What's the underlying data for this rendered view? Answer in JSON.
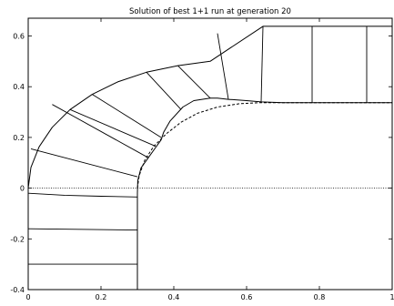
{
  "chart_data": {
    "type": "line",
    "title": "Solution of best 1+1 run at generation 20",
    "xlabel": "",
    "ylabel": "",
    "xlim": [
      0,
      1
    ],
    "ylim": [
      -0.4,
      0.67
    ],
    "x_ticks": [
      {
        "value": 0,
        "label": "0"
      },
      {
        "value": 0.2,
        "label": "0.2"
      },
      {
        "value": 0.4,
        "label": "0.4"
      },
      {
        "value": 0.6,
        "label": "0.6"
      },
      {
        "value": 0.8,
        "label": "0.8"
      },
      {
        "value": 1.0,
        "label": "1"
      }
    ],
    "y_ticks": [
      {
        "value": -0.4,
        "label": "-0.4"
      },
      {
        "value": -0.2,
        "label": "-0.2"
      },
      {
        "value": 0,
        "label": "0"
      },
      {
        "value": 0.2,
        "label": "0.2"
      },
      {
        "value": 0.4,
        "label": "0.4"
      },
      {
        "value": 0.6,
        "label": "0.6"
      }
    ],
    "grid": false,
    "legend": "none",
    "series": [
      {
        "key": "outer-boundary",
        "style": "solid",
        "points": [
          [
            0,
            0
          ],
          [
            0.0075,
            0.082
          ],
          [
            0.03,
            0.163
          ],
          [
            0.066,
            0.24
          ],
          [
            0.115,
            0.31
          ],
          [
            0.176,
            0.37
          ],
          [
            0.246,
            0.419
          ],
          [
            0.325,
            0.457
          ],
          [
            0.411,
            0.483
          ],
          [
            0.5,
            0.5
          ],
          [
            0.645,
            0.638
          ],
          [
            0.78,
            0.638
          ],
          [
            0.93,
            0.638
          ],
          [
            1.0,
            0.638
          ]
        ]
      },
      {
        "key": "inner-boundary",
        "style": "solid",
        "points": [
          [
            0.3,
            -0.4
          ],
          [
            0.3,
            -0.02
          ],
          [
            0.301,
            0.03
          ],
          [
            0.31,
            0.08
          ],
          [
            0.33,
            0.12
          ],
          [
            0.35,
            0.16
          ],
          [
            0.365,
            0.19
          ],
          [
            0.372,
            0.22
          ],
          [
            0.39,
            0.265
          ],
          [
            0.425,
            0.32
          ],
          [
            0.455,
            0.345
          ],
          [
            0.5,
            0.355
          ],
          [
            0.52,
            0.355
          ],
          [
            0.55,
            0.35
          ],
          [
            0.6,
            0.345
          ],
          [
            0.64,
            0.34
          ],
          [
            0.7,
            0.337
          ],
          [
            1.0,
            0.337
          ]
        ]
      },
      {
        "key": "reference-boundary",
        "style": "dashed",
        "points": [
          [
            0.3,
            0.0
          ],
          [
            0.305,
            0.05
          ],
          [
            0.32,
            0.11
          ],
          [
            0.345,
            0.165
          ],
          [
            0.38,
            0.215
          ],
          [
            0.42,
            0.26
          ],
          [
            0.465,
            0.295
          ],
          [
            0.52,
            0.32
          ],
          [
            0.58,
            0.333
          ],
          [
            0.64,
            0.337
          ],
          [
            1.0,
            0.337
          ]
        ]
      },
      {
        "key": "centerline",
        "style": "dotted",
        "points": [
          [
            0,
            0
          ],
          [
            1.0,
            0
          ]
        ]
      }
    ],
    "mesh_lines": [
      [
        [
          0,
          -0.02
        ],
        [
          0.1,
          -0.028
        ],
        [
          0.2,
          -0.032
        ],
        [
          0.3,
          -0.035
        ]
      ],
      [
        [
          0,
          -0.16
        ],
        [
          0.3,
          -0.165
        ]
      ],
      [
        [
          0,
          -0.3
        ],
        [
          0.3,
          -0.3
        ]
      ],
      [
        [
          0.0075,
          0.155
        ],
        [
          0.3,
          0.045
        ]
      ],
      [
        [
          0.066,
          0.33
        ],
        [
          0.33,
          0.12
        ]
      ],
      [
        [
          0.115,
          0.31
        ],
        [
          0.35,
          0.165
        ]
      ],
      [
        [
          0.176,
          0.37
        ],
        [
          0.365,
          0.2
        ]
      ],
      [
        [
          0.325,
          0.457
        ],
        [
          0.42,
          0.31
        ]
      ],
      [
        [
          0.411,
          0.483
        ],
        [
          0.5,
          0.355
        ]
      ],
      [
        [
          0.52,
          0.61
        ],
        [
          0.55,
          0.35
        ]
      ],
      [
        [
          0.645,
          0.638
        ],
        [
          0.64,
          0.34
        ]
      ],
      [
        [
          0.78,
          0.638
        ],
        [
          0.78,
          0.337
        ]
      ],
      [
        [
          0.93,
          0.638
        ],
        [
          0.93,
          0.337
        ]
      ]
    ]
  }
}
